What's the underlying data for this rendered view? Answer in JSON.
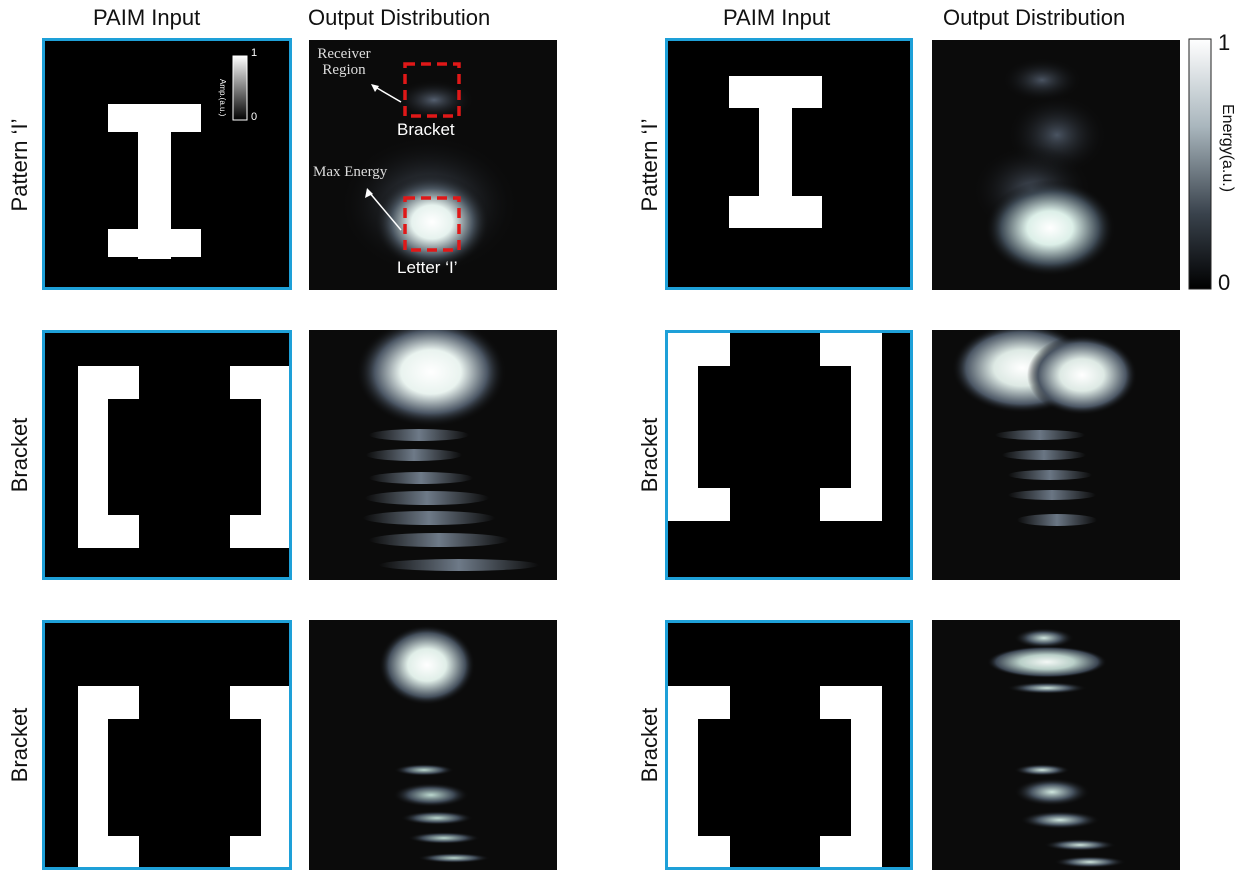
{
  "columns": {
    "left_input": "PAIM Input",
    "left_output": "Output Distribution",
    "right_input": "PAIM Input",
    "right_output": "Output Distribution"
  },
  "rows": [
    {
      "left_label": "Pattern ‘I’",
      "right_label": "Pattern ‘I’"
    },
    {
      "left_label": "Bracket",
      "right_label": "Bracket"
    },
    {
      "left_label": "Bracket",
      "right_label": "Bracket"
    }
  ],
  "annotations": {
    "receiver_region": "Receiver Region",
    "bracket": "Bracket",
    "max_energy": "Max Energy",
    "letter_i": "Letter ‘I’"
  },
  "amp_colorbar": {
    "label": "Amp.(a.u.)",
    "max": "1",
    "min": "0"
  },
  "energy_colorbar": {
    "label": "Energy(a.u.)",
    "max": "1",
    "min": "0"
  },
  "colors": {
    "panel_border": "#1ea0d8",
    "box_dash": "#e01818",
    "pattern": "#ffffff"
  }
}
